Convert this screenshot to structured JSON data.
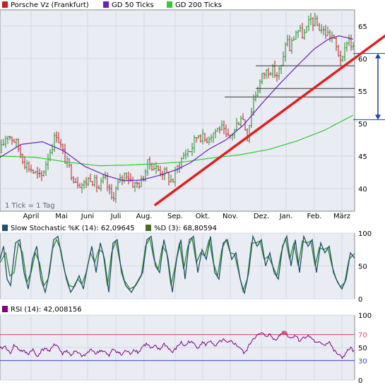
{
  "colors": {
    "background": "#ffffff",
    "panel_fill": "#e9ecf3",
    "grid": "#d5d9e2",
    "border": "#8a8a8a",
    "price_up": "#1c8a1c",
    "price_down": "#b81c1c",
    "gd50": "#6a1fbf",
    "gd200": "#2ecc2e",
    "trendline": "#e02020",
    "support_lines": "#333333",
    "range_arrow": "#1a3fb0",
    "stoch_k": "#1e4f6a",
    "stoch_d": "#2e8b2e",
    "rsi": "#800080",
    "rsi_70": "#e04060",
    "rsi_30": "#4040d0"
  },
  "chart_data": [
    {
      "type": "line",
      "name": "price",
      "legend": [
        {
          "label": "Porsche Vz (Frankfurt)",
          "color": "#c62020",
          "icon": "price-swatch"
        },
        {
          "label": "GD 50 Ticks",
          "color": "#6a1fbf",
          "icon": "gd50-swatch"
        },
        {
          "label": "GD 200 Ticks",
          "color": "#2ecc2e",
          "icon": "gd200-swatch"
        }
      ],
      "note": "1 Tick = 1 Tag",
      "months": [
        "April",
        "Mai",
        "Juni",
        "Juli",
        "Aug.",
        "Sep.",
        "Okt.",
        "Nov.",
        "Dez.",
        "Jan.",
        "Feb.",
        "März"
      ],
      "y_ticks": [
        "65",
        "60",
        "55",
        "50",
        "45",
        "40"
      ],
      "ylim": [
        36.5,
        67.5
      ],
      "price_anchors": [
        [
          0,
          45.5
        ],
        [
          10,
          48.5
        ],
        [
          22,
          47.2
        ],
        [
          35,
          44.0
        ],
        [
          48,
          42.5
        ],
        [
          58,
          41.5
        ],
        [
          68,
          45.0
        ],
        [
          80,
          48.5
        ],
        [
          92,
          44.5
        ],
        [
          105,
          41.5
        ],
        [
          118,
          40.5
        ],
        [
          128,
          41.8
        ],
        [
          140,
          40.0
        ],
        [
          148,
          41.5
        ],
        [
          158,
          38.5
        ],
        [
          168,
          40.8
        ],
        [
          178,
          42.5
        ],
        [
          190,
          40.5
        ],
        [
          200,
          41.0
        ],
        [
          210,
          44.0
        ],
        [
          222,
          43.0
        ],
        [
          232,
          42.5
        ],
        [
          244,
          41.0
        ],
        [
          252,
          43.5
        ],
        [
          262,
          45.5
        ],
        [
          270,
          46.0
        ],
        [
          280,
          48.5
        ],
        [
          290,
          47.5
        ],
        [
          300,
          48.5
        ],
        [
          312,
          49.5
        ],
        [
          322,
          47.5
        ],
        [
          332,
          49.0
        ],
        [
          342,
          51.5
        ],
        [
          350,
          48.0
        ],
        [
          358,
          53.5
        ],
        [
          365,
          55.5
        ],
        [
          372,
          57.5
        ],
        [
          382,
          58.5
        ],
        [
          392,
          57.5
        ],
        [
          400,
          59.0
        ],
        [
          405,
          63.5
        ],
        [
          410,
          61.5
        ],
        [
          420,
          64.5
        ],
        [
          430,
          63.5
        ],
        [
          440,
          66.0
        ],
        [
          450,
          65.0
        ],
        [
          460,
          64.0
        ],
        [
          470,
          63.5
        ],
        [
          478,
          61.0
        ],
        [
          485,
          59.5
        ],
        [
          492,
          63.5
        ],
        [
          500,
          61.5
        ]
      ],
      "gd50_anchors": [
        [
          0,
          44.8
        ],
        [
          30,
          46.8
        ],
        [
          60,
          47.2
        ],
        [
          90,
          45.8
        ],
        [
          120,
          43.4
        ],
        [
          150,
          42.0
        ],
        [
          175,
          41.2
        ],
        [
          200,
          41.3
        ],
        [
          225,
          42.0
        ],
        [
          250,
          42.9
        ],
        [
          270,
          44.0
        ],
        [
          295,
          46.0
        ],
        [
          320,
          47.5
        ],
        [
          345,
          49.8
        ],
        [
          370,
          53.0
        ],
        [
          395,
          56.0
        ],
        [
          420,
          58.8
        ],
        [
          445,
          61.5
        ],
        [
          465,
          63.0
        ],
        [
          480,
          63.5
        ],
        [
          500,
          63.0
        ]
      ],
      "gd200_anchors": [
        [
          0,
          45.0
        ],
        [
          50,
          44.8
        ],
        [
          100,
          44.0
        ],
        [
          140,
          43.5
        ],
        [
          180,
          43.6
        ],
        [
          220,
          43.8
        ],
        [
          260,
          44.1
        ],
        [
          300,
          44.7
        ],
        [
          340,
          45.2
        ],
        [
          380,
          46.0
        ],
        [
          420,
          47.3
        ],
        [
          460,
          49.0
        ],
        [
          500,
          51.3
        ]
      ],
      "trendline": [
        [
          220,
          37.5
        ],
        [
          545,
          63.5
        ]
      ],
      "support_levels": [
        {
          "value": 58.9,
          "x_from": 362
        },
        {
          "value": 55.4,
          "x_from": 362
        },
        {
          "value": 54.1,
          "x_from": 318
        },
        {
          "value": 50.6,
          "x_from": 500
        },
        {
          "value": 60.8,
          "x_from": 500
        }
      ],
      "range_arrow": {
        "from": 60.8,
        "to": 50.6
      }
    },
    {
      "type": "line",
      "name": "stochastic",
      "legend": [
        {
          "label": "Slow Stochastic %K (14): 62,09645",
          "color": "#1e4f6a",
          "icon": "stoch-k-swatch"
        },
        {
          "label": "%D (3): 68,80594",
          "color": "#4d6b1e",
          "icon": "stoch-d-swatch"
        }
      ],
      "y_ticks": [
        "100",
        "50",
        "0"
      ],
      "ylim": [
        0,
        100
      ],
      "k_anchors": [
        [
          0,
          60
        ],
        [
          5,
          80
        ],
        [
          10,
          30
        ],
        [
          15,
          20
        ],
        [
          22,
          85
        ],
        [
          28,
          90
        ],
        [
          34,
          40
        ],
        [
          40,
          15
        ],
        [
          46,
          60
        ],
        [
          52,
          80
        ],
        [
          58,
          30
        ],
        [
          64,
          10
        ],
        [
          70,
          40
        ],
        [
          76,
          90
        ],
        [
          82,
          95
        ],
        [
          88,
          60
        ],
        [
          94,
          30
        ],
        [
          100,
          10
        ],
        [
          106,
          20
        ],
        [
          112,
          35
        ],
        [
          118,
          15
        ],
        [
          124,
          50
        ],
        [
          130,
          80
        ],
        [
          136,
          40
        ],
        [
          142,
          85
        ],
        [
          148,
          60
        ],
        [
          154,
          10
        ],
        [
          160,
          85
        ],
        [
          166,
          90
        ],
        [
          172,
          40
        ],
        [
          178,
          20
        ],
        [
          186,
          10
        ],
        [
          194,
          25
        ],
        [
          202,
          40
        ],
        [
          208,
          90
        ],
        [
          214,
          95
        ],
        [
          220,
          50
        ],
        [
          226,
          40
        ],
        [
          232,
          90
        ],
        [
          238,
          60
        ],
        [
          244,
          10
        ],
        [
          250,
          60
        ],
        [
          256,
          90
        ],
        [
          262,
          30
        ],
        [
          268,
          90
        ],
        [
          274,
          95
        ],
        [
          280,
          40
        ],
        [
          286,
          75
        ],
        [
          292,
          60
        ],
        [
          298,
          95
        ],
        [
          304,
          40
        ],
        [
          310,
          30
        ],
        [
          316,
          85
        ],
        [
          322,
          90
        ],
        [
          328,
          60
        ],
        [
          334,
          70
        ],
        [
          340,
          30
        ],
        [
          346,
          8
        ],
        [
          352,
          40
        ],
        [
          358,
          95
        ],
        [
          364,
          80
        ],
        [
          370,
          90
        ],
        [
          376,
          50
        ],
        [
          382,
          70
        ],
        [
          388,
          40
        ],
        [
          394,
          30
        ],
        [
          400,
          80
        ],
        [
          406,
          95
        ],
        [
          412,
          50
        ],
        [
          418,
          90
        ],
        [
          424,
          40
        ],
        [
          430,
          95
        ],
        [
          436,
          80
        ],
        [
          442,
          90
        ],
        [
          448,
          40
        ],
        [
          454,
          85
        ],
        [
          460,
          70
        ],
        [
          466,
          80
        ],
        [
          472,
          40
        ],
        [
          478,
          25
        ],
        [
          484,
          15
        ],
        [
          490,
          30
        ],
        [
          496,
          70
        ],
        [
          502,
          62
        ]
      ],
      "d_anchors": [
        [
          0,
          55
        ],
        [
          8,
          70
        ],
        [
          14,
          35
        ],
        [
          20,
          40
        ],
        [
          26,
          85
        ],
        [
          32,
          70
        ],
        [
          38,
          25
        ],
        [
          44,
          40
        ],
        [
          50,
          70
        ],
        [
          56,
          55
        ],
        [
          62,
          20
        ],
        [
          68,
          30
        ],
        [
          74,
          75
        ],
        [
          80,
          90
        ],
        [
          86,
          75
        ],
        [
          92,
          40
        ],
        [
          98,
          20
        ],
        [
          104,
          18
        ],
        [
          110,
          30
        ],
        [
          116,
          22
        ],
        [
          122,
          40
        ],
        [
          128,
          70
        ],
        [
          134,
          55
        ],
        [
          140,
          75
        ],
        [
          146,
          70
        ],
        [
          152,
          20
        ],
        [
          158,
          70
        ],
        [
          164,
          88
        ],
        [
          170,
          55
        ],
        [
          176,
          28
        ],
        [
          184,
          15
        ],
        [
          192,
          20
        ],
        [
          200,
          35
        ],
        [
          206,
          80
        ],
        [
          212,
          92
        ],
        [
          218,
          60
        ],
        [
          224,
          45
        ],
        [
          230,
          80
        ],
        [
          236,
          70
        ],
        [
          242,
          20
        ],
        [
          248,
          50
        ],
        [
          254,
          85
        ],
        [
          260,
          45
        ],
        [
          266,
          80
        ],
        [
          272,
          92
        ],
        [
          278,
          55
        ],
        [
          284,
          70
        ],
        [
          290,
          65
        ],
        [
          296,
          90
        ],
        [
          302,
          55
        ],
        [
          308,
          35
        ],
        [
          314,
          75
        ],
        [
          320,
          90
        ],
        [
          326,
          70
        ],
        [
          332,
          68
        ],
        [
          338,
          40
        ],
        [
          344,
          12
        ],
        [
          350,
          30
        ],
        [
          356,
          85
        ],
        [
          362,
          85
        ],
        [
          368,
          88
        ],
        [
          374,
          60
        ],
        [
          380,
          65
        ],
        [
          386,
          50
        ],
        [
          392,
          35
        ],
        [
          398,
          70
        ],
        [
          404,
          92
        ],
        [
          410,
          60
        ],
        [
          416,
          85
        ],
        [
          422,
          50
        ],
        [
          428,
          88
        ],
        [
          434,
          85
        ],
        [
          440,
          88
        ],
        [
          446,
          50
        ],
        [
          452,
          78
        ],
        [
          458,
          75
        ],
        [
          464,
          78
        ],
        [
          470,
          50
        ],
        [
          476,
          30
        ],
        [
          482,
          18
        ],
        [
          488,
          25
        ],
        [
          494,
          60
        ],
        [
          502,
          69
        ]
      ]
    },
    {
      "type": "line",
      "name": "rsi",
      "legend": [
        {
          "label": "RSI (14): 42,008156",
          "color": "#800080",
          "icon": "rsi-swatch"
        }
      ],
      "y_ticks": [
        "100",
        "70",
        "50",
        "30",
        "0"
      ],
      "ylim": [
        0,
        100
      ],
      "levels": [
        70,
        30
      ],
      "rsi_anchors": [
        [
          0,
          48
        ],
        [
          8,
          52
        ],
        [
          14,
          40
        ],
        [
          20,
          54
        ],
        [
          28,
          46
        ],
        [
          34,
          44
        ],
        [
          40,
          40
        ],
        [
          46,
          48
        ],
        [
          52,
          36
        ],
        [
          58,
          44
        ],
        [
          64,
          50
        ],
        [
          70,
          42
        ],
        [
          76,
          56
        ],
        [
          82,
          52
        ],
        [
          88,
          40
        ],
        [
          94,
          46
        ],
        [
          100,
          38
        ],
        [
          106,
          44
        ],
        [
          112,
          40
        ],
        [
          118,
          36
        ],
        [
          124,
          42
        ],
        [
          130,
          48
        ],
        [
          136,
          40
        ],
        [
          142,
          46
        ],
        [
          148,
          44
        ],
        [
          154,
          36
        ],
        [
          160,
          48
        ],
        [
          166,
          44
        ],
        [
          172,
          38
        ],
        [
          178,
          46
        ],
        [
          184,
          40
        ],
        [
          190,
          48
        ],
        [
          196,
          42
        ],
        [
          202,
          52
        ],
        [
          208,
          56
        ],
        [
          214,
          48
        ],
        [
          220,
          52
        ],
        [
          226,
          46
        ],
        [
          232,
          56
        ],
        [
          238,
          50
        ],
        [
          244,
          42
        ],
        [
          250,
          50
        ],
        [
          256,
          58
        ],
        [
          262,
          52
        ],
        [
          268,
          60
        ],
        [
          274,
          56
        ],
        [
          280,
          50
        ],
        [
          286,
          58
        ],
        [
          292,
          54
        ],
        [
          298,
          62
        ],
        [
          304,
          50
        ],
        [
          310,
          58
        ],
        [
          316,
          62
        ],
        [
          322,
          56
        ],
        [
          328,
          60
        ],
        [
          334,
          54
        ],
        [
          340,
          50
        ],
        [
          346,
          40
        ],
        [
          352,
          52
        ],
        [
          358,
          64
        ],
        [
          364,
          68
        ],
        [
          370,
          72
        ],
        [
          376,
          68
        ],
        [
          382,
          70
        ],
        [
          388,
          62
        ],
        [
          394,
          66
        ],
        [
          400,
          74
        ],
        [
          406,
          70
        ],
        [
          412,
          64
        ],
        [
          418,
          70
        ],
        [
          424,
          60
        ],
        [
          430,
          66
        ],
        [
          436,
          68
        ],
        [
          442,
          64
        ],
        [
          448,
          56
        ],
        [
          454,
          58
        ],
        [
          460,
          54
        ],
        [
          466,
          60
        ],
        [
          472,
          46
        ],
        [
          478,
          40
        ],
        [
          484,
          34
        ],
        [
          490,
          42
        ],
        [
          496,
          50
        ],
        [
          502,
          42
        ]
      ]
    }
  ]
}
